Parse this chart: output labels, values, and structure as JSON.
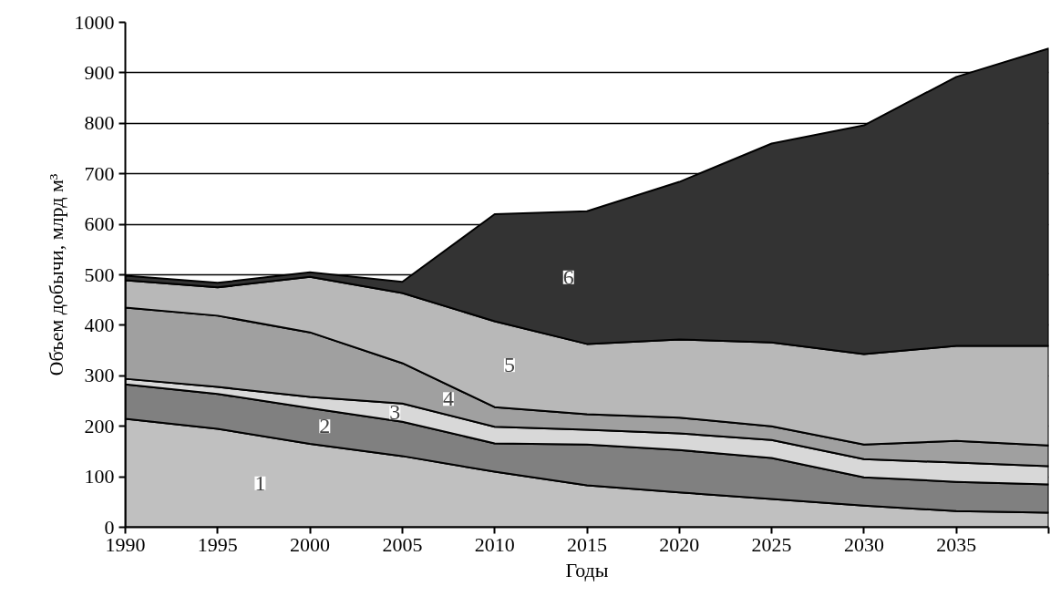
{
  "chart_data": {
    "type": "area",
    "stacked": true,
    "xlabel": "Годы",
    "ylabel": "Объем добычи, млрд м³",
    "x": [
      1990,
      1995,
      2000,
      2005,
      2010,
      2015,
      2020,
      2025,
      2030,
      2035,
      2040
    ],
    "xlim": [
      1990,
      2040
    ],
    "xticks": [
      1990,
      1995,
      2000,
      2005,
      2010,
      2015,
      2020,
      2025,
      2030,
      2035,
      {
        "value": 2040,
        "label": null
      }
    ],
    "ylim": [
      0,
      1000
    ],
    "yticks": [
      0,
      100,
      200,
      300,
      400,
      500,
      600,
      700,
      800,
      900,
      1000
    ],
    "grid": "y",
    "series": [
      {
        "color": "#c0c0c0",
        "values": [
          215,
          195,
          165,
          141,
          110,
          83,
          69,
          56,
          43,
          32,
          29
        ]
      },
      {
        "color": "#808080",
        "values": [
          68,
          69,
          71,
          68,
          56,
          81,
          84,
          81,
          56,
          58,
          56
        ]
      },
      {
        "color": "#d8d8d8",
        "values": [
          11,
          14,
          22,
          36,
          33,
          29,
          33,
          36,
          36,
          38,
          36
        ]
      },
      {
        "color": "#a0a0a0",
        "values": [
          141,
          141,
          128,
          80,
          39,
          31,
          31,
          27,
          29,
          43,
          41
        ]
      },
      {
        "color": "#b8b8b8",
        "values": [
          54,
          56,
          110,
          139,
          170,
          139,
          155,
          166,
          179,
          188,
          197
        ]
      },
      {
        "color": "#333333",
        "values": [
          9,
          9,
          9,
          22,
          212,
          263,
          312,
          394,
          453,
          533,
          589
        ]
      }
    ],
    "annotations": [
      {
        "text": "1",
        "x": 1997.3,
        "y": 87
      },
      {
        "text": "2",
        "x": 2000.8,
        "y": 200
      },
      {
        "text": "3",
        "x": 2004.6,
        "y": 227
      },
      {
        "text": "4",
        "x": 2007.5,
        "y": 254
      },
      {
        "text": "5",
        "x": 2010.8,
        "y": 321
      },
      {
        "text": "6",
        "x": 2014,
        "y": 495
      }
    ]
  }
}
